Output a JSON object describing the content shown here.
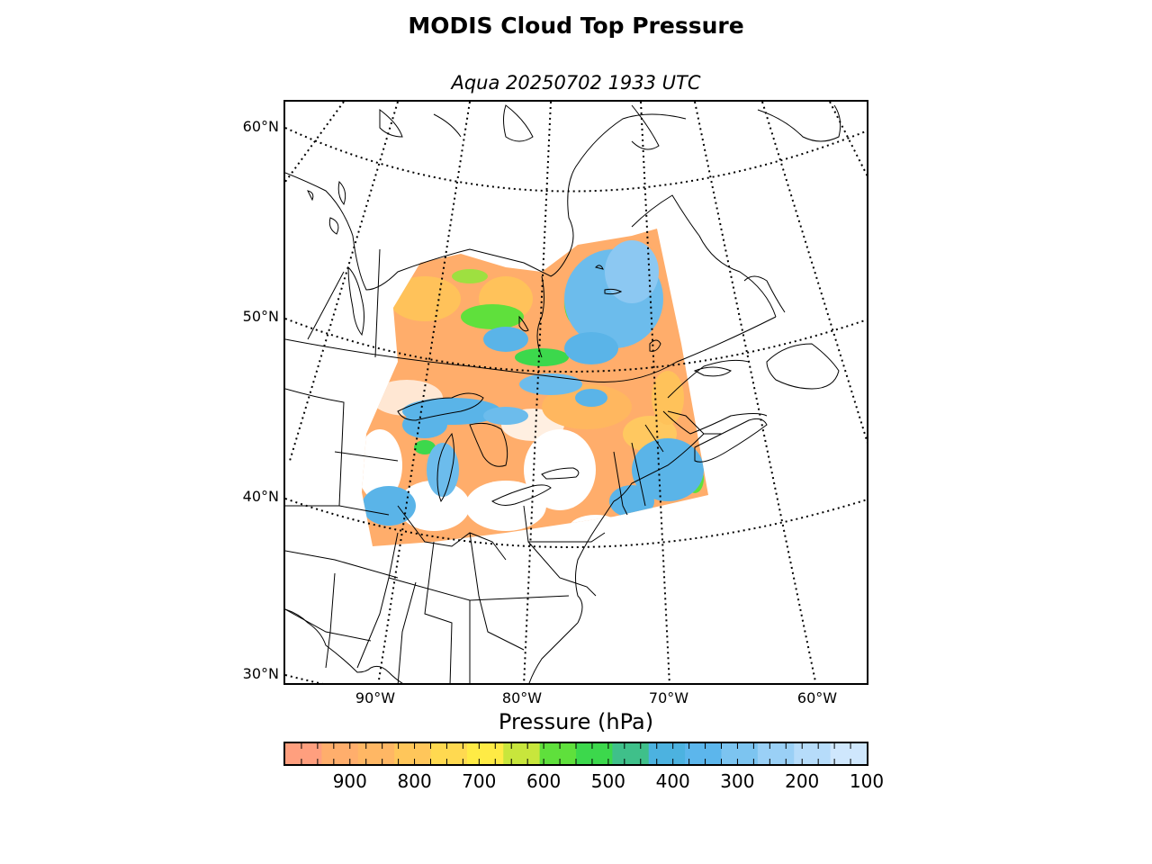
{
  "title": "MODIS Cloud Top Pressure",
  "subtitle": "Aqua 20250702 1933 UTC",
  "map": {
    "parallels": [
      {
        "value": 60,
        "label": "60°N"
      },
      {
        "value": 50,
        "label": "50°N"
      },
      {
        "value": 40,
        "label": "40°N"
      },
      {
        "value": 30,
        "label": "30°N"
      }
    ],
    "meridians": [
      {
        "value": -90,
        "label": "90°W"
      },
      {
        "value": -80,
        "label": "80°W"
      },
      {
        "value": -70,
        "label": "70°W"
      },
      {
        "value": -60,
        "label": "60°W"
      }
    ],
    "projection": "conic",
    "graticule": "dotted"
  },
  "colorbar": {
    "label": "Pressure (hPa)",
    "min": 100,
    "max": 1000,
    "direction": "reversed",
    "ticks": [
      "900",
      "800",
      "700",
      "600",
      "500",
      "400",
      "300",
      "200",
      "100"
    ],
    "colors": [
      "#ff9f7e",
      "#ffae6c",
      "#ffb764",
      "#ffc65a",
      "#ffd950",
      "#ffeb45",
      "#c8e63c",
      "#5fe03c",
      "#3cd84c",
      "#3fc08a",
      "#4cb2e0",
      "#5cb6ec",
      "#7cc4f0",
      "#9ad0f6",
      "#b6dcfa",
      "#cfe7fd"
    ]
  }
}
